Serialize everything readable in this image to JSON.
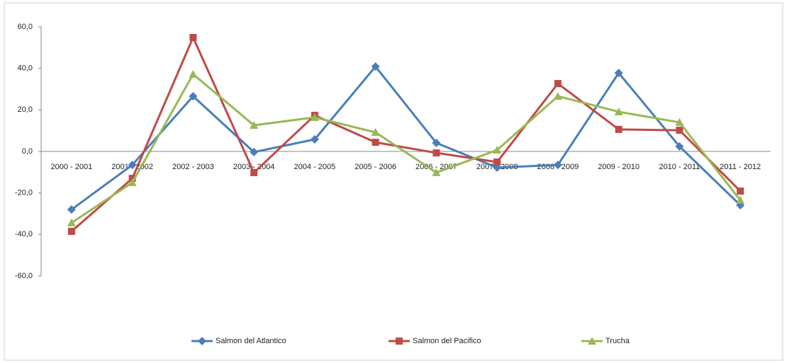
{
  "chart_data": {
    "type": "line",
    "categories": [
      "2000 - 2001",
      "2001 - 2002",
      "2002 - 2003",
      "2003 - 2004",
      "2004 - 2005",
      "2005 - 2006",
      "2006 - 2007",
      "2007 - 2008",
      "2008 - 2009",
      "2009 - 2010",
      "2010 - 2011",
      "2011 - 2012"
    ],
    "series": [
      {
        "name": "Salmon del Atlantico",
        "color": "#4a7ebb",
        "marker": "diamond",
        "values": [
          -28,
          -6.5,
          26.6,
          -0.3,
          5.8,
          40.9,
          4.1,
          -7.8,
          -6.5,
          37.8,
          2.4,
          -25.9
        ]
      },
      {
        "name": "Salmon del Pacifico",
        "color": "#be4b48",
        "marker": "square",
        "values": [
          -38.5,
          -13,
          54.9,
          -10.2,
          17.4,
          4.4,
          -0.7,
          -5.1,
          32.7,
          10.6,
          10.2,
          -19.1
        ]
      },
      {
        "name": "Trucha",
        "color": "#98b954",
        "marker": "triangle",
        "values": [
          -34.4,
          -15,
          37.2,
          12.6,
          16.4,
          9.2,
          -10.2,
          0.7,
          26.6,
          19.1,
          14,
          -23.5
        ]
      }
    ],
    "ylim": [
      -60,
      60
    ],
    "yticks": [
      {
        "value": -60,
        "label": "-60,0"
      },
      {
        "value": -40,
        "label": "-40,0"
      },
      {
        "value": -20,
        "label": "-20,0"
      },
      {
        "value": 0,
        "label": "0,0"
      },
      {
        "value": 20,
        "label": "20,0"
      },
      {
        "value": 40,
        "label": "40,0"
      },
      {
        "value": 60,
        "label": "60,0"
      }
    ],
    "legend": "bottom"
  }
}
